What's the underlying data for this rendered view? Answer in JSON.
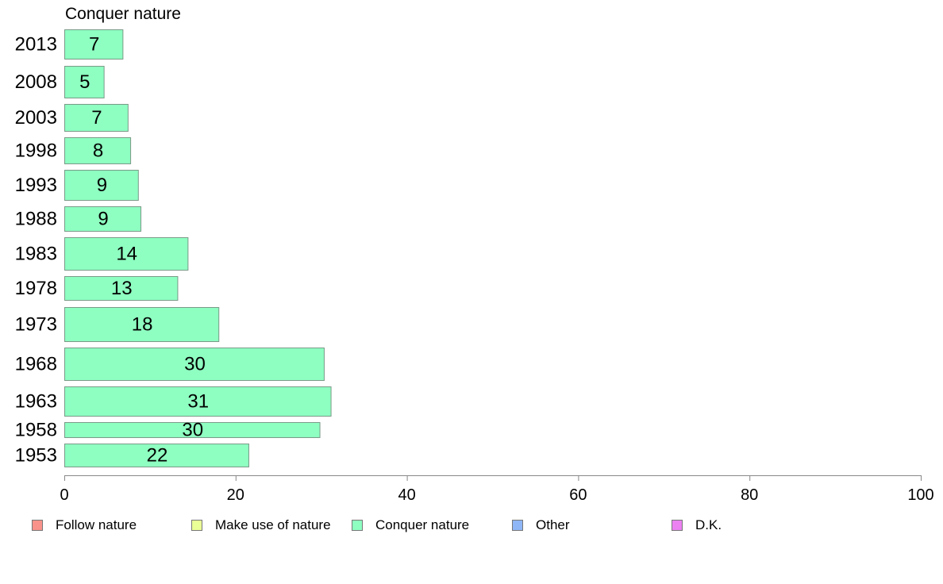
{
  "chart_data": {
    "type": "bar",
    "orientation": "horizontal",
    "title": "Conquer nature",
    "categories": [
      "2013",
      "2008",
      "2003",
      "1998",
      "1993",
      "1988",
      "1983",
      "1978",
      "1973",
      "1968",
      "1963",
      "1958",
      "1953"
    ],
    "values": [
      6.8,
      4.6,
      7.4,
      7.7,
      8.6,
      8.9,
      14.4,
      13.2,
      18.0,
      30.3,
      31.1,
      29.8,
      21.5
    ],
    "data_labels": [
      "7",
      "5",
      "7",
      "8",
      "9",
      "9",
      "14",
      "13",
      "18",
      "30",
      "31",
      "30",
      "22"
    ],
    "series": [
      {
        "name": "Conquer nature",
        "values": [
          6.8,
          4.6,
          7.4,
          7.7,
          8.6,
          8.9,
          14.4,
          13.2,
          18.0,
          30.3,
          31.1,
          29.8,
          21.5
        ]
      }
    ],
    "xlim": [
      0,
      100
    ],
    "xticks": [
      0,
      20,
      40,
      60,
      80,
      100
    ],
    "grid": false,
    "legend_placement": "bottom",
    "bar_color": "#8effc1"
  },
  "legend": [
    {
      "label": "Follow nature",
      "color": "#f8928a"
    },
    {
      "label": "Make use of nature",
      "color": "#eaff96"
    },
    {
      "label": "Conquer nature",
      "color": "#8effc1"
    },
    {
      "label": "Other",
      "color": "#8fb6f6"
    },
    {
      "label": "D.K.",
      "color": "#ec82f2"
    }
  ]
}
